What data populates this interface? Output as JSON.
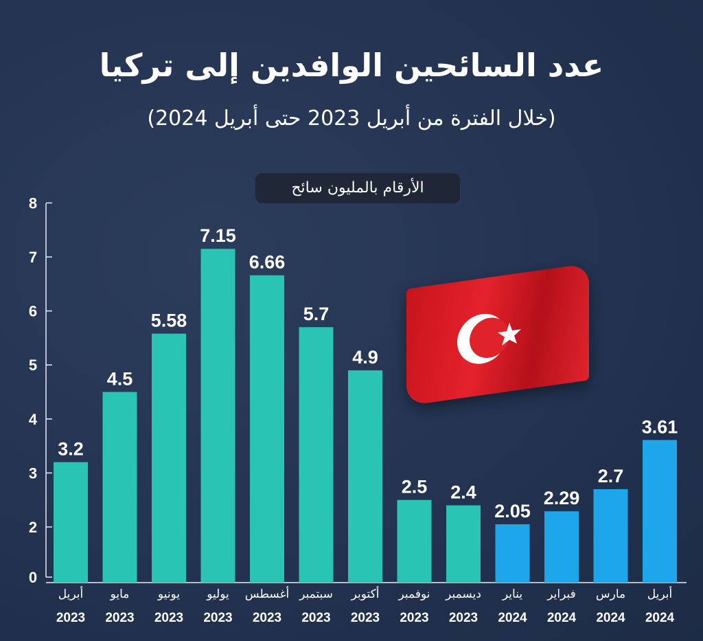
{
  "title": "عدد السائحين الوافدين إلى تركيا",
  "subtitle": "(خلال الفترة من أبريل 2023 حتى أبريل 2024)",
  "unit_label": "الأرقام بالمليون سائح",
  "colors": {
    "background": "#22324f",
    "bar_2023": "#2ac4b3",
    "bar_2024": "#1ea6ea",
    "flag": "#e0222a"
  },
  "icons": {
    "flag": "turkey-flag"
  },
  "chart_data": {
    "type": "bar",
    "categories": [
      {
        "month": "أبريل",
        "year": "2023"
      },
      {
        "month": "مايو",
        "year": "2023"
      },
      {
        "month": "يونيو",
        "year": "2023"
      },
      {
        "month": "يوليو",
        "year": "2023"
      },
      {
        "month": "أغسطس",
        "year": "2023"
      },
      {
        "month": "سبتمبر",
        "year": "2023"
      },
      {
        "month": "أكتوبر",
        "year": "2023"
      },
      {
        "month": "نوفمبر",
        "year": "2023"
      },
      {
        "month": "ديسمبر",
        "year": "2023"
      },
      {
        "month": "يناير",
        "year": "2024"
      },
      {
        "month": "فبراير",
        "year": "2024"
      },
      {
        "month": "مارس",
        "year": "2024"
      },
      {
        "month": "أبريل",
        "year": "2024"
      }
    ],
    "values": [
      3.2,
      4.5,
      5.58,
      7.15,
      6.66,
      5.7,
      4.9,
      2.5,
      2.4,
      2.05,
      2.29,
      2.7,
      3.61
    ],
    "value_labels": [
      "3.2",
      "4.5",
      "5.58",
      "7.15",
      "6.66",
      "5.7",
      "4.9",
      "2.5",
      "2.4",
      "2.05",
      "2.29",
      "2.7",
      "3.61"
    ],
    "yticks": [
      "0",
      "2",
      "3",
      "4",
      "5",
      "6",
      "7",
      "8"
    ],
    "ylim": [
      0,
      8
    ],
    "axis_break": "between 0 and 2",
    "grid": false
  }
}
